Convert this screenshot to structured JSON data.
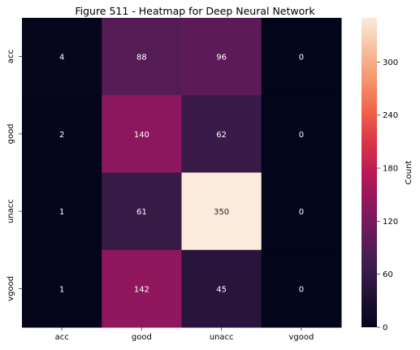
{
  "chart_data": {
    "type": "heatmap",
    "title": "Figure 511 - Heatmap for Deep Neural Network",
    "x_categories": [
      "acc",
      "good",
      "unacc",
      "vgood"
    ],
    "y_categories": [
      "acc",
      "good",
      "unacc",
      "vgood"
    ],
    "values": [
      [
        4,
        88,
        96,
        0
      ],
      [
        2,
        140,
        62,
        0
      ],
      [
        1,
        61,
        350,
        0
      ],
      [
        1,
        142,
        45,
        0
      ]
    ],
    "colorbar": {
      "label": "Count",
      "range": [
        0,
        350
      ],
      "ticks": [
        0,
        60,
        120,
        180,
        240,
        300
      ]
    },
    "colormap": "rocket"
  }
}
